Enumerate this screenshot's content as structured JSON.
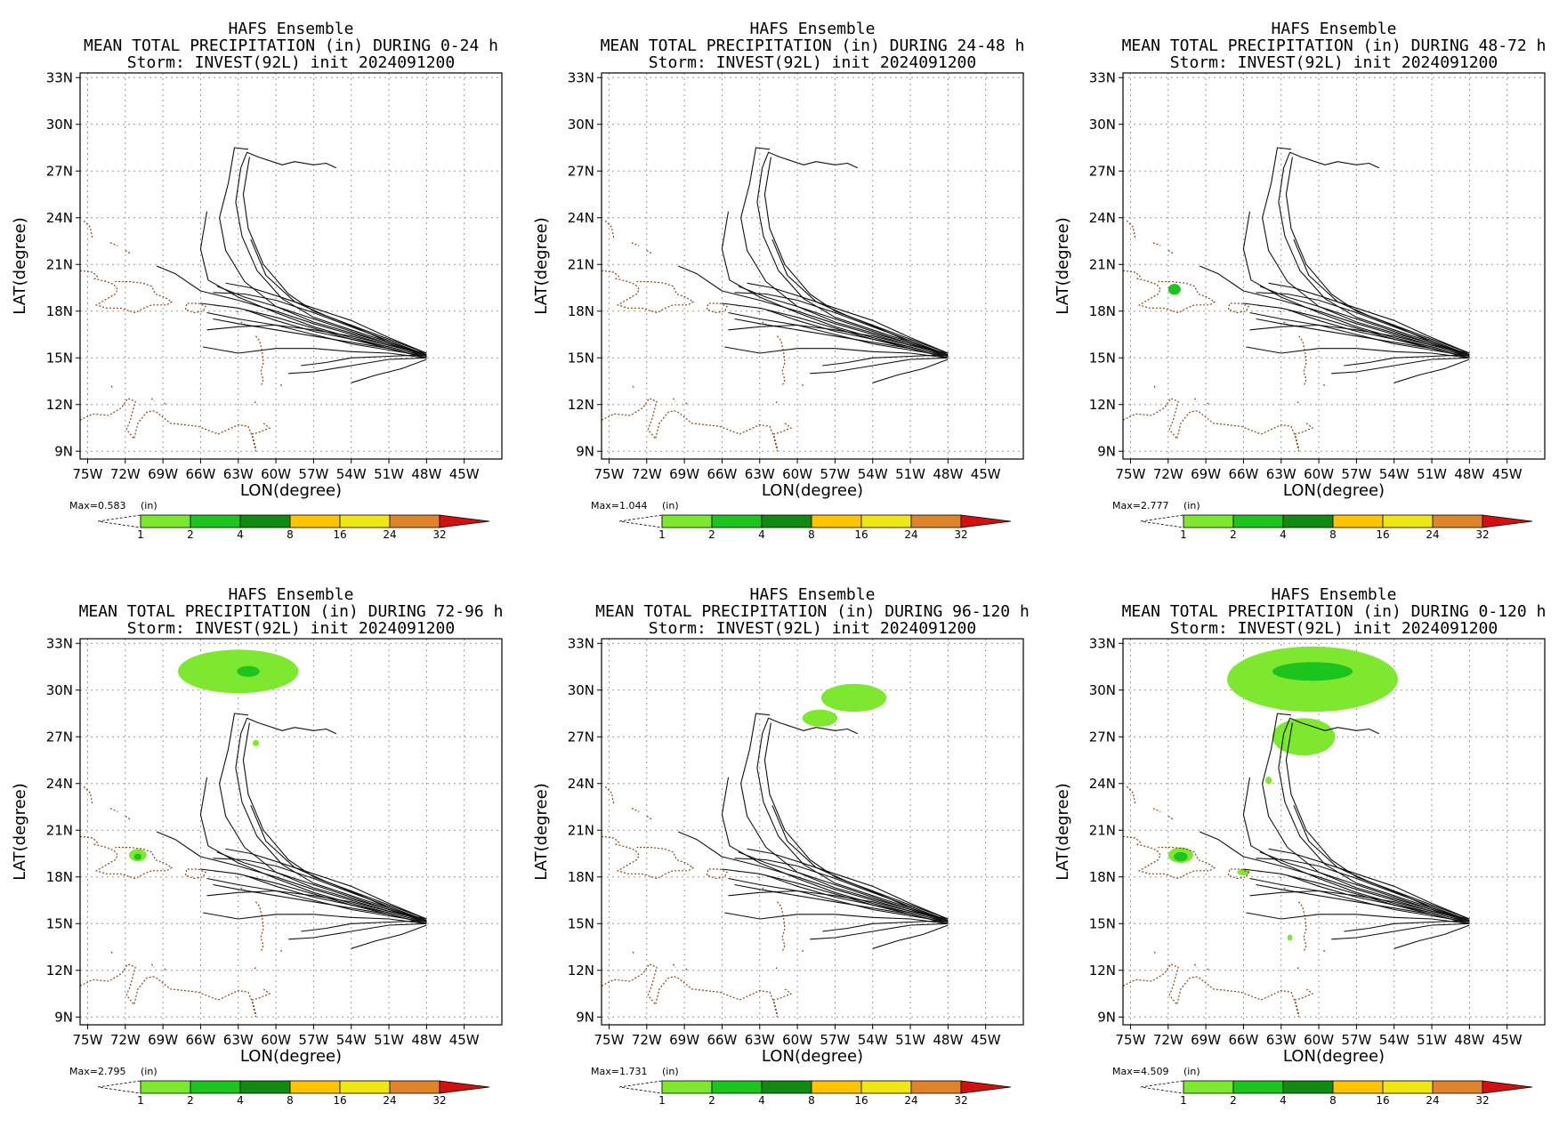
{
  "figure": {
    "common_lines": {
      "model": "HAFS Ensemble",
      "storm": "Storm: INVEST(92L) init 2024091200"
    },
    "axes": {
      "xlabel": "LON(degree)",
      "ylabel": "LAT(degree)",
      "x_ticks": [
        "75W",
        "72W",
        "69W",
        "66W",
        "63W",
        "60W",
        "57W",
        "54W",
        "51W",
        "48W",
        "45W"
      ],
      "x_tick_values": [
        -75,
        -72,
        -69,
        -66,
        -63,
        -60,
        -57,
        -54,
        -51,
        -48,
        -45
      ],
      "y_ticks": [
        "33N",
        "30N",
        "27N",
        "24N",
        "21N",
        "18N",
        "15N",
        "12N",
        "9N"
      ],
      "y_tick_values": [
        33,
        30,
        27,
        24,
        21,
        18,
        15,
        12,
        9
      ],
      "lon_range": [
        -75.6,
        -42.0
      ],
      "lat_range": [
        8.5,
        33.3
      ],
      "grid": "dotted"
    },
    "colorbar": {
      "unit_label": "(in)",
      "labels": [
        "1",
        "2",
        "4",
        "8",
        "16",
        "24",
        "32"
      ],
      "colors": [
        "#7ee830",
        "#1ec41e",
        "#118a11",
        "#ffc400",
        "#f0e614",
        "#e0842c",
        "#d21010"
      ]
    },
    "panels": [
      {
        "title_line2": "MEAN TOTAL PRECIPITATION (in) DURING  0-24 h",
        "max_label": "Max=0.583",
        "precip_areas": []
      },
      {
        "title_line2": "MEAN TOTAL PRECIPITATION (in) DURING 24-48 h",
        "max_label": "Max=1.044",
        "precip_areas": []
      },
      {
        "title_line2": "MEAN TOTAL PRECIPITATION (in) DURING 48-72 h",
        "max_label": "Max=2.777",
        "precip_areas": [
          {
            "lon": -71.5,
            "lat": 19.4,
            "rlon": 0.5,
            "rlat": 0.35,
            "color": "#1ec41e"
          }
        ]
      },
      {
        "title_line2": "MEAN TOTAL PRECIPITATION (in) DURING 72-96 h",
        "max_label": "Max=2.795",
        "precip_areas": [
          {
            "lon": -63.0,
            "lat": 31.2,
            "rlon": 4.8,
            "rlat": 1.4,
            "color": "#7ee830"
          },
          {
            "lon": -62.2,
            "lat": 31.2,
            "rlon": 0.9,
            "rlat": 0.35,
            "color": "#1ec41e"
          },
          {
            "lon": -71.0,
            "lat": 19.4,
            "rlon": 0.7,
            "rlat": 0.4,
            "color": "#7ee830"
          },
          {
            "lon": -71.0,
            "lat": 19.3,
            "rlon": 0.3,
            "rlat": 0.2,
            "color": "#1ec41e"
          },
          {
            "lon": -61.6,
            "lat": 26.6,
            "rlon": 0.25,
            "rlat": 0.2,
            "color": "#7ee830"
          }
        ]
      },
      {
        "title_line2": "MEAN TOTAL PRECIPITATION (in) DURING 96-120 h",
        "max_label": "Max=1.731",
        "precip_areas": [
          {
            "lon": -55.5,
            "lat": 29.5,
            "rlon": 2.6,
            "rlat": 0.9,
            "color": "#7ee830"
          },
          {
            "lon": -58.2,
            "lat": 28.2,
            "rlon": 1.4,
            "rlat": 0.55,
            "color": "#7ee830"
          }
        ]
      },
      {
        "title_line2": "MEAN TOTAL PRECIPITATION (in) DURING 0-120 h",
        "max_label": "Max=4.509",
        "precip_areas": [
          {
            "lon": -60.5,
            "lat": 30.7,
            "rlon": 6.8,
            "rlat": 2.1,
            "color": "#7ee830"
          },
          {
            "lon": -61.2,
            "lat": 27.0,
            "rlon": 2.5,
            "rlat": 1.2,
            "color": "#7ee830"
          },
          {
            "lon": -60.5,
            "lat": 31.2,
            "rlon": 3.2,
            "rlat": 0.6,
            "color": "#1ec41e"
          },
          {
            "lon": -71.0,
            "lat": 19.4,
            "rlon": 1.0,
            "rlat": 0.5,
            "color": "#7ee830"
          },
          {
            "lon": -71.0,
            "lat": 19.3,
            "rlon": 0.55,
            "rlat": 0.3,
            "color": "#1ec41e"
          },
          {
            "lon": -66.0,
            "lat": 18.3,
            "rlon": 0.5,
            "rlat": 0.2,
            "color": "#7ee830"
          },
          {
            "lon": -64.0,
            "lat": 24.2,
            "rlon": 0.25,
            "rlat": 0.25,
            "color": "#7ee830"
          },
          {
            "lon": -62.3,
            "lat": 14.1,
            "rlon": 0.2,
            "rlat": 0.2,
            "color": "#7ee830"
          }
        ]
      }
    ],
    "ensemble_tracks": [
      [
        [
          -48,
          15.2
        ],
        [
          -51,
          15.9
        ],
        [
          -54,
          16.6
        ],
        [
          -57,
          17.3
        ],
        [
          -60,
          18.3
        ],
        [
          -62.5,
          19.9
        ],
        [
          -64,
          21.9
        ],
        [
          -64.5,
          24.0
        ],
        [
          -63.8,
          26.2
        ],
        [
          -63.3,
          28.5
        ],
        [
          -62.2,
          28.4
        ]
      ],
      [
        [
          -48,
          15.2
        ],
        [
          -51,
          16.0
        ],
        [
          -54,
          16.8
        ],
        [
          -57,
          17.6
        ],
        [
          -59.5,
          18.8
        ],
        [
          -61.5,
          20.6
        ],
        [
          -62.7,
          22.8
        ],
        [
          -63.2,
          25.0
        ],
        [
          -62.8,
          27.2
        ],
        [
          -62.3,
          28.2
        ],
        [
          -61.4,
          27.9
        ],
        [
          -59.5,
          27.4
        ],
        [
          -58.5,
          27.6
        ],
        [
          -57.0,
          27.4
        ],
        [
          -56.0,
          27.5
        ],
        [
          -55.2,
          27.2
        ]
      ],
      [
        [
          -48,
          15.3
        ],
        [
          -51,
          16.2
        ],
        [
          -54,
          17.1
        ],
        [
          -57,
          18.0
        ],
        [
          -59.0,
          19.1
        ],
        [
          -61.0,
          21.0
        ],
        [
          -62.2,
          23.3
        ],
        [
          -62.6,
          25.5
        ],
        [
          -62.1,
          27.9
        ]
      ],
      [
        [
          -48,
          15.1
        ],
        [
          -51,
          15.7
        ],
        [
          -54,
          16.3
        ],
        [
          -57,
          17.0
        ],
        [
          -60,
          17.9
        ],
        [
          -63,
          18.9
        ],
        [
          -65.4,
          20.0
        ],
        [
          -66,
          22.0
        ],
        [
          -65.5,
          24.4
        ]
      ],
      [
        [
          -48,
          15.2
        ],
        [
          -51,
          15.8
        ],
        [
          -54,
          16.5
        ],
        [
          -57,
          17.2
        ],
        [
          -60,
          18.0
        ],
        [
          -63,
          18.7
        ],
        [
          -66,
          19.3
        ],
        [
          -68,
          20.4
        ],
        [
          -69.5,
          20.9
        ]
      ],
      [
        [
          -48,
          15.0
        ],
        [
          -51,
          15.6
        ],
        [
          -54,
          16.2
        ],
        [
          -57,
          16.9
        ],
        [
          -60,
          17.6
        ],
        [
          -63,
          18.2
        ],
        [
          -66,
          18.5
        ]
      ],
      [
        [
          -48,
          15.1
        ],
        [
          -51,
          15.5
        ],
        [
          -54,
          15.9
        ],
        [
          -57,
          16.5
        ],
        [
          -60,
          17.1
        ],
        [
          -63,
          17.0
        ],
        [
          -65.5,
          16.8
        ]
      ],
      [
        [
          -48,
          15.0
        ],
        [
          -51,
          15.3
        ],
        [
          -54,
          15.4
        ],
        [
          -57,
          15.6
        ],
        [
          -60,
          15.6
        ],
        [
          -63,
          15.3
        ],
        [
          -65.8,
          15.7
        ]
      ],
      [
        [
          -48,
          15.0
        ],
        [
          -51,
          14.9
        ],
        [
          -54,
          14.5
        ],
        [
          -57,
          14.1
        ],
        [
          -59,
          14.0
        ]
      ],
      [
        [
          -48,
          14.9
        ],
        [
          -50,
          14.3
        ],
        [
          -52,
          13.9
        ],
        [
          -54,
          13.4
        ]
      ],
      [
        [
          -48,
          15.3
        ],
        [
          -51,
          16.3
        ],
        [
          -54,
          17.4
        ],
        [
          -57,
          18.2
        ],
        [
          -60,
          19.0
        ],
        [
          -62,
          19.5
        ],
        [
          -64,
          19.8
        ]
      ],
      [
        [
          -48,
          15.2
        ],
        [
          -51,
          16.1
        ],
        [
          -54,
          17.0
        ],
        [
          -57,
          17.9
        ],
        [
          -60,
          18.7
        ],
        [
          -62.5,
          19.1
        ],
        [
          -65,
          19.2
        ]
      ],
      [
        [
          -48,
          15.1
        ],
        [
          -51,
          15.9
        ],
        [
          -54,
          16.7
        ],
        [
          -57,
          17.5
        ],
        [
          -60,
          18.3
        ],
        [
          -62.5,
          18.9
        ],
        [
          -64.7,
          19.6
        ]
      ],
      [
        [
          -48,
          15.0
        ],
        [
          -51,
          15.6
        ],
        [
          -54,
          16.0
        ],
        [
          -57,
          16.4
        ],
        [
          -60,
          16.8
        ],
        [
          -63,
          17.2
        ],
        [
          -65,
          17.5
        ]
      ],
      [
        [
          -48,
          15.2
        ],
        [
          -51,
          16.0
        ],
        [
          -53.5,
          16.9
        ],
        [
          -56,
          17.7
        ],
        [
          -58.5,
          18.6
        ],
        [
          -60.8,
          20.3
        ],
        [
          -62.0,
          22.6
        ]
      ],
      [
        [
          -48,
          15.1
        ],
        [
          -51,
          15.7
        ],
        [
          -54,
          16.2
        ],
        [
          -57,
          16.7
        ],
        [
          -60,
          17.4
        ],
        [
          -62.5,
          18.1
        ]
      ],
      [
        [
          -48,
          15.3
        ],
        [
          -51,
          15.8
        ],
        [
          -54,
          16.4
        ],
        [
          -57,
          16.8
        ],
        [
          -60,
          17.1
        ],
        [
          -63,
          17.5
        ],
        [
          -65.5,
          17.9
        ]
      ],
      [
        [
          -48,
          15.2
        ],
        [
          -51,
          15.1
        ],
        [
          -54,
          15.0
        ],
        [
          -56,
          14.7
        ],
        [
          -58,
          14.5
        ]
      ]
    ],
    "coastlines": [
      [
        [
          -75.6,
          11.0
        ],
        [
          -74.6,
          11.4
        ],
        [
          -73.3,
          11.3
        ],
        [
          -72.3,
          11.8
        ],
        [
          -71.8,
          12.4
        ],
        [
          -71.2,
          12.2
        ],
        [
          -71.6,
          11.0
        ],
        [
          -71.9,
          10.4
        ],
        [
          -71.3,
          9.8
        ],
        [
          -71.0,
          10.8
        ],
        [
          -70.3,
          11.5
        ],
        [
          -69.8,
          11.6
        ],
        [
          -69.5,
          11.5
        ],
        [
          -68.4,
          10.8
        ],
        [
          -66.2,
          10.6
        ],
        [
          -64.6,
          10.1
        ],
        [
          -63.0,
          10.7
        ],
        [
          -62.2,
          10.6
        ],
        [
          -61.9,
          10.0
        ],
        [
          -61.6,
          9.0
        ]
      ],
      [
        [
          -74.5,
          20.1
        ],
        [
          -73.5,
          19.9
        ],
        [
          -72.9,
          19.7
        ],
        [
          -72.6,
          19.4
        ],
        [
          -72.8,
          19.1
        ],
        [
          -74.3,
          18.4
        ],
        [
          -73.5,
          18.2
        ],
        [
          -72.4,
          18.2
        ],
        [
          -71.2,
          17.9
        ],
        [
          -70.5,
          18.2
        ],
        [
          -69.9,
          18.4
        ],
        [
          -68.7,
          18.4
        ],
        [
          -68.3,
          18.6
        ],
        [
          -68.9,
          18.9
        ],
        [
          -69.6,
          19.1
        ],
        [
          -69.9,
          19.6
        ],
        [
          -70.6,
          19.8
        ],
        [
          -71.7,
          19.9
        ],
        [
          -72.8,
          19.9
        ]
      ],
      [
        [
          -67.2,
          18.1
        ],
        [
          -67.1,
          18.5
        ],
        [
          -66.2,
          18.5
        ],
        [
          -65.6,
          18.3
        ],
        [
          -65.8,
          18.0
        ],
        [
          -66.5,
          17.9
        ],
        [
          -67.2,
          18.1
        ]
      ],
      [
        [
          -75.6,
          20.6
        ],
        [
          -74.6,
          20.5
        ],
        [
          -74.2,
          20.2
        ]
      ],
      [
        [
          -75.3,
          23.8
        ],
        [
          -74.8,
          23.4
        ],
        [
          -74.6,
          22.6
        ]
      ],
      [
        [
          -73.2,
          22.4
        ],
        [
          -72.6,
          22.2
        ]
      ],
      [
        [
          -72.0,
          21.9
        ],
        [
          -71.6,
          21.7
        ]
      ],
      [
        [
          -61.6,
          16.4
        ],
        [
          -61.3,
          16.1
        ],
        [
          -61.1,
          15.4
        ],
        [
          -61.0,
          14.7
        ],
        [
          -61.2,
          14.1
        ],
        [
          -61.0,
          13.6
        ],
        [
          -61.2,
          13.2
        ]
      ],
      [
        [
          -62.8,
          17.3
        ],
        [
          -62.4,
          17.1
        ]
      ],
      [
        [
          -61.8,
          17.1
        ],
        [
          -61.7,
          16.9
        ]
      ],
      [
        [
          -64.9,
          18.4
        ],
        [
          -64.6,
          18.3
        ]
      ],
      [
        [
          -63.1,
          18.0
        ],
        [
          -62.9,
          17.9
        ]
      ],
      [
        [
          -61.7,
          12.1
        ],
        [
          -61.6,
          12.2
        ]
      ],
      [
        [
          -59.6,
          13.3
        ],
        [
          -59.5,
          13.1
        ]
      ],
      [
        [
          -61.0,
          10.8
        ],
        [
          -60.5,
          10.5
        ],
        [
          -61.4,
          10.2
        ],
        [
          -61.9,
          10.1
        ],
        [
          -61.6,
          9.2
        ]
      ],
      [
        [
          -69.9,
          12.4
        ],
        [
          -69.7,
          12.2
        ]
      ],
      [
        [
          -68.9,
          12.1
        ],
        [
          -68.7,
          12.0
        ]
      ],
      [
        [
          -73.1,
          13.2
        ],
        [
          -73.0,
          13.0
        ]
      ]
    ]
  }
}
